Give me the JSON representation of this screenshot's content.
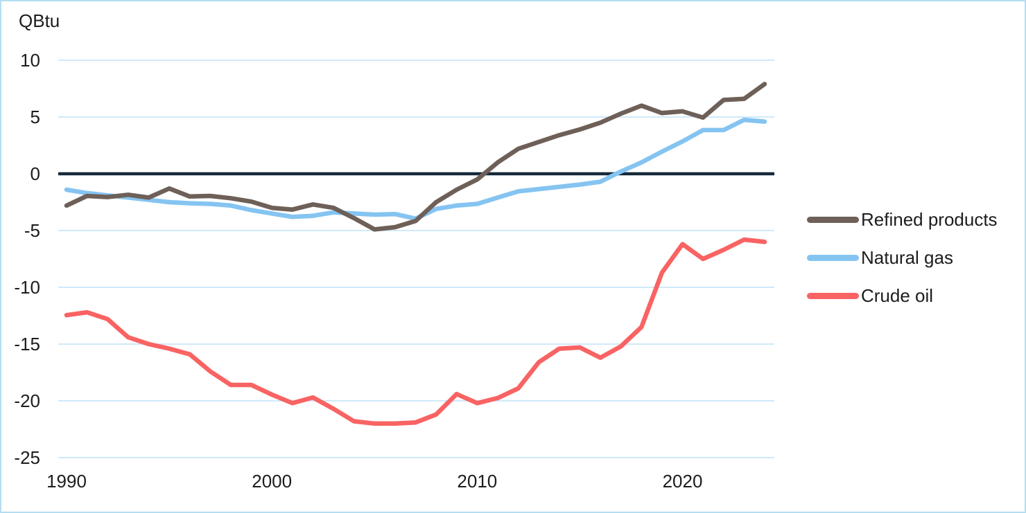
{
  "chart_data": {
    "type": "line",
    "ylabel": "QBtu",
    "x": [
      1990,
      1991,
      1992,
      1993,
      1994,
      1995,
      1996,
      1997,
      1998,
      1999,
      2000,
      2001,
      2002,
      2003,
      2004,
      2005,
      2006,
      2007,
      2008,
      2009,
      2010,
      2011,
      2012,
      2013,
      2014,
      2015,
      2016,
      2017,
      2018,
      2019,
      2020,
      2021,
      2022,
      2023,
      2024
    ],
    "series": [
      {
        "name": "Refined products",
        "color": "#6e6058",
        "values": [
          -2.8,
          -1.95,
          -2.05,
          -1.85,
          -2.1,
          -1.3,
          -2.0,
          -1.95,
          -2.15,
          -2.45,
          -3.0,
          -3.15,
          -2.7,
          -3.0,
          -3.9,
          -4.9,
          -4.7,
          -4.15,
          -2.5,
          -1.4,
          -0.5,
          1.0,
          2.2,
          2.8,
          3.4,
          3.9,
          4.5,
          5.3,
          6.0,
          5.35,
          5.5,
          4.95,
          6.5,
          6.6,
          7.9
        ]
      },
      {
        "name": "Natural gas",
        "color": "#85c4f1",
        "values": [
          -1.4,
          -1.7,
          -1.9,
          -2.1,
          -2.3,
          -2.5,
          -2.6,
          -2.65,
          -2.8,
          -3.2,
          -3.5,
          -3.8,
          -3.7,
          -3.4,
          -3.5,
          -3.6,
          -3.55,
          -3.95,
          -3.1,
          -2.8,
          -2.65,
          -2.1,
          -1.55,
          -1.35,
          -1.15,
          -0.95,
          -0.7,
          0.2,
          1.0,
          1.95,
          2.85,
          3.85,
          3.85,
          4.75,
          4.6
        ]
      },
      {
        "name": "Crude oil",
        "color": "#f96363",
        "values": [
          -12.45,
          -12.2,
          -12.8,
          -14.4,
          -15.0,
          -15.4,
          -15.9,
          -17.4,
          -18.6,
          -18.6,
          -19.45,
          -20.2,
          -19.7,
          -20.7,
          -21.8,
          -22.0,
          -22.0,
          -21.9,
          -21.2,
          -19.4,
          -20.2,
          -19.75,
          -18.9,
          -16.6,
          -15.4,
          -15.3,
          -16.2,
          -15.2,
          -13.5,
          -8.7,
          -6.2,
          -7.5,
          -6.7,
          -5.8,
          -6.0
        ]
      }
    ],
    "y_ticks": [
      10,
      5,
      0,
      -5,
      -10,
      -15,
      -20,
      -25
    ],
    "x_ticks": [
      1990,
      2000,
      2010,
      2020
    ],
    "ylim": [
      -25,
      10
    ],
    "xlim": [
      1990,
      2024
    ],
    "grid": "horizontal",
    "zero_line": true,
    "legend_position": "right",
    "colors": {
      "gridline": "#cfe9f9",
      "zero_line": "#15293a",
      "text": "#1c1c1c",
      "border": "#b5ddf0",
      "background": "#ffffff"
    }
  }
}
